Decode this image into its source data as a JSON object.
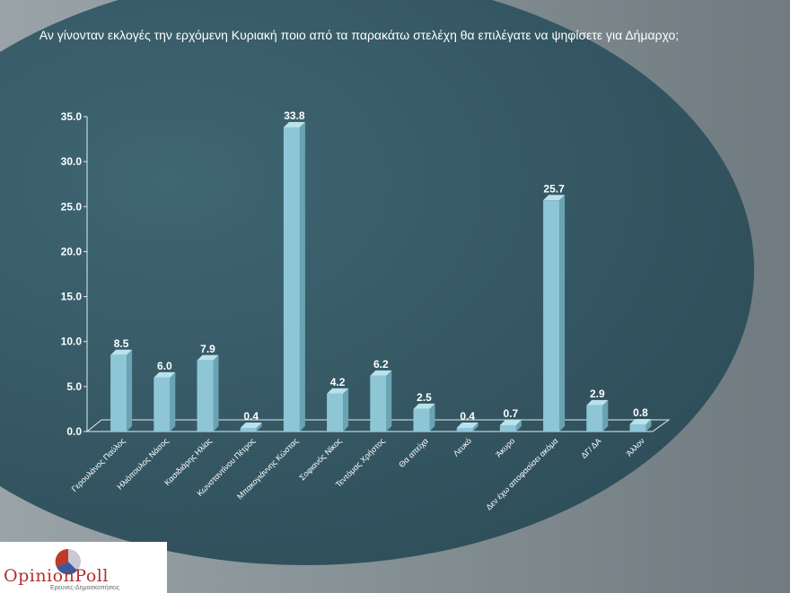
{
  "title": "Αν γίνονταν εκλογές την ερχόμενη Κυριακή ποιο από τα παρακάτω στελέχη θα επιλέγατε να ψηφίσετε για Δήμαρχο;",
  "logo": {
    "name": "OpinionPoll",
    "tagline": "Ερευνες-Δημοσκοπήσεις"
  },
  "colors": {
    "bar_front": "#8fc6d6",
    "bar_side": "#6aa3b3",
    "bar_top": "#b8e2ec",
    "text": "#ffffff",
    "logo_red": "#b1312f"
  },
  "chart_data": {
    "type": "bar",
    "title": "Αν γίνονταν εκλογές την ερχόμενη Κυριακή ποιο από τα παρακάτω στελέχη θα επιλέγατε να ψηφίσετε για Δήμαρχο;",
    "categories": [
      "Γερουλάνος Παύλος",
      "Ηλιόπουλος Νάσος",
      "Κασιδιάρης Ηλίας",
      "Κωνσταντίνου Πέτρος",
      "Μπακογιάννης Κώστας",
      "Σοφιανός Νίκος",
      "Τεντόμας Χρήστος",
      "Θα απείχα",
      "Λευκό",
      "Άκυρο",
      "Δεν έχω αποφασίσει ακόμα",
      "ΔΓ/ ΔΑ",
      "Άλλον"
    ],
    "values": [
      8.5,
      6.0,
      7.9,
      0.4,
      33.8,
      4.2,
      6.2,
      2.5,
      0.4,
      0.7,
      25.7,
      2.9,
      0.8
    ],
    "value_labels": [
      "8.5",
      "6.0",
      "7.9",
      "0.4",
      "33.8",
      "4.2",
      "6.2",
      "2.5",
      "0.4",
      "0.7",
      "25.7",
      "2.9",
      "0.8"
    ],
    "yticks": [
      "0.0",
      "5.0",
      "10.0",
      "15.0",
      "20.0",
      "25.0",
      "30.0",
      "35.0"
    ],
    "ylim": [
      0,
      35
    ],
    "grid": false,
    "legend": "none"
  }
}
